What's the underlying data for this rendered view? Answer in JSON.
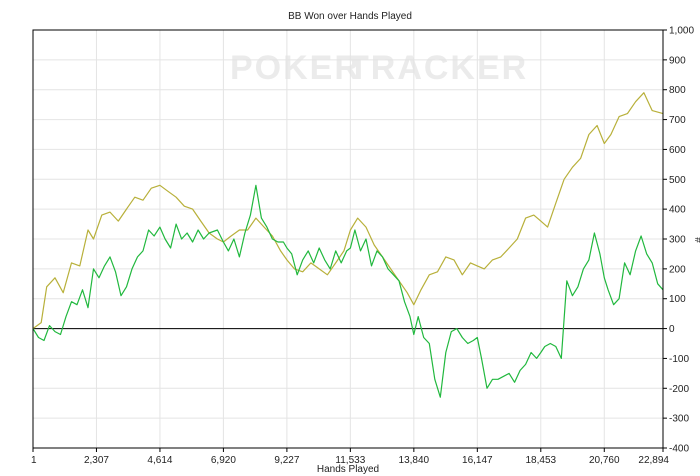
{
  "chart_data": {
    "type": "line",
    "title": "BB Won over Hands Played",
    "xlabel": "Hands Played",
    "ylabel": "",
    "y_axis_unit_glyph": "#",
    "watermark": {
      "left": "POKER",
      "right": "TRACKER"
    },
    "xlim": [
      1,
      22894
    ],
    "ylim": [
      -400,
      1000
    ],
    "grid": true,
    "zero_line": true,
    "x_ticks": [
      1,
      2307,
      4614,
      6920,
      9227,
      11533,
      13840,
      16147,
      18453,
      20760,
      22894
    ],
    "x_tick_labels": [
      "1",
      "2,307",
      "4,614",
      "6,920",
      "9,227",
      "11,533",
      "13,840",
      "16,147",
      "18,453",
      "20,760",
      "22,894"
    ],
    "y_ticks": [
      -400,
      -300,
      -200,
      -100,
      0,
      100,
      200,
      300,
      400,
      500,
      600,
      700,
      800,
      900,
      1000
    ],
    "y_tick_labels": [
      "-400",
      "-300",
      "-200",
      "-100",
      "0",
      "100",
      "200",
      "300",
      "400",
      "500",
      "600",
      "700",
      "800",
      "900",
      "1,000"
    ],
    "series": [
      {
        "color": "#b8b03a",
        "points": [
          [
            1,
            0
          ],
          [
            300,
            20
          ],
          [
            500,
            140
          ],
          [
            800,
            170
          ],
          [
            1100,
            120
          ],
          [
            1400,
            220
          ],
          [
            1700,
            210
          ],
          [
            2000,
            330
          ],
          [
            2200,
            300
          ],
          [
            2500,
            380
          ],
          [
            2800,
            390
          ],
          [
            3100,
            360
          ],
          [
            3400,
            400
          ],
          [
            3700,
            440
          ],
          [
            4000,
            430
          ],
          [
            4300,
            470
          ],
          [
            4614,
            480
          ],
          [
            4900,
            460
          ],
          [
            5200,
            440
          ],
          [
            5500,
            410
          ],
          [
            5800,
            400
          ],
          [
            6100,
            360
          ],
          [
            6400,
            320
          ],
          [
            6700,
            300
          ],
          [
            6920,
            290
          ],
          [
            7200,
            310
          ],
          [
            7500,
            330
          ],
          [
            7800,
            330
          ],
          [
            8100,
            370
          ],
          [
            8400,
            340
          ],
          [
            8700,
            310
          ],
          [
            9000,
            260
          ],
          [
            9227,
            230
          ],
          [
            9500,
            200
          ],
          [
            9800,
            190
          ],
          [
            10100,
            220
          ],
          [
            10400,
            200
          ],
          [
            10700,
            180
          ],
          [
            11000,
            220
          ],
          [
            11300,
            260
          ],
          [
            11533,
            330
          ],
          [
            11800,
            370
          ],
          [
            12100,
            340
          ],
          [
            12400,
            280
          ],
          [
            12700,
            240
          ],
          [
            13000,
            200
          ],
          [
            13300,
            160
          ],
          [
            13600,
            120
          ],
          [
            13840,
            80
          ],
          [
            14100,
            130
          ],
          [
            14400,
            180
          ],
          [
            14700,
            190
          ],
          [
            15000,
            240
          ],
          [
            15300,
            230
          ],
          [
            15600,
            180
          ],
          [
            15900,
            220
          ],
          [
            16147,
            210
          ],
          [
            16400,
            200
          ],
          [
            16700,
            230
          ],
          [
            17000,
            240
          ],
          [
            17300,
            270
          ],
          [
            17600,
            300
          ],
          [
            17900,
            370
          ],
          [
            18200,
            380
          ],
          [
            18453,
            360
          ],
          [
            18700,
            340
          ],
          [
            19000,
            420
          ],
          [
            19300,
            500
          ],
          [
            19600,
            540
          ],
          [
            19900,
            570
          ],
          [
            20200,
            650
          ],
          [
            20500,
            680
          ],
          [
            20760,
            620
          ],
          [
            21000,
            650
          ],
          [
            21300,
            710
          ],
          [
            21600,
            720
          ],
          [
            21900,
            760
          ],
          [
            22200,
            790
          ],
          [
            22500,
            730
          ],
          [
            22894,
            720
          ]
        ]
      },
      {
        "color": "#21b83e",
        "points": [
          [
            1,
            0
          ],
          [
            200,
            -30
          ],
          [
            400,
            -40
          ],
          [
            600,
            10
          ],
          [
            800,
            -10
          ],
          [
            1000,
            -20
          ],
          [
            1200,
            40
          ],
          [
            1400,
            90
          ],
          [
            1600,
            80
          ],
          [
            1800,
            130
          ],
          [
            2000,
            70
          ],
          [
            2200,
            200
          ],
          [
            2400,
            170
          ],
          [
            2600,
            210
          ],
          [
            2800,
            240
          ],
          [
            3000,
            190
          ],
          [
            3200,
            110
          ],
          [
            3400,
            140
          ],
          [
            3600,
            200
          ],
          [
            3800,
            240
          ],
          [
            4000,
            260
          ],
          [
            4200,
            330
          ],
          [
            4400,
            310
          ],
          [
            4614,
            340
          ],
          [
            4800,
            300
          ],
          [
            5000,
            270
          ],
          [
            5200,
            350
          ],
          [
            5400,
            300
          ],
          [
            5600,
            320
          ],
          [
            5800,
            290
          ],
          [
            6000,
            330
          ],
          [
            6200,
            300
          ],
          [
            6400,
            320
          ],
          [
            6700,
            330
          ],
          [
            6920,
            290
          ],
          [
            7100,
            260
          ],
          [
            7300,
            300
          ],
          [
            7500,
            240
          ],
          [
            7700,
            320
          ],
          [
            7900,
            380
          ],
          [
            8100,
            480
          ],
          [
            8300,
            370
          ],
          [
            8500,
            340
          ],
          [
            8700,
            300
          ],
          [
            8900,
            290
          ],
          [
            9100,
            290
          ],
          [
            9227,
            270
          ],
          [
            9400,
            250
          ],
          [
            9600,
            180
          ],
          [
            9800,
            230
          ],
          [
            10000,
            260
          ],
          [
            10200,
            220
          ],
          [
            10400,
            270
          ],
          [
            10600,
            230
          ],
          [
            10800,
            200
          ],
          [
            11000,
            260
          ],
          [
            11200,
            220
          ],
          [
            11400,
            260
          ],
          [
            11533,
            270
          ],
          [
            11700,
            330
          ],
          [
            11900,
            260
          ],
          [
            12100,
            300
          ],
          [
            12300,
            210
          ],
          [
            12500,
            260
          ],
          [
            12700,
            240
          ],
          [
            12900,
            200
          ],
          [
            13100,
            180
          ],
          [
            13300,
            160
          ],
          [
            13500,
            90
          ],
          [
            13700,
            40
          ],
          [
            13840,
            -20
          ],
          [
            14000,
            40
          ],
          [
            14200,
            -30
          ],
          [
            14400,
            -50
          ],
          [
            14600,
            -170
          ],
          [
            14800,
            -230
          ],
          [
            15000,
            -80
          ],
          [
            15200,
            -10
          ],
          [
            15400,
            0
          ],
          [
            15600,
            -30
          ],
          [
            15800,
            -50
          ],
          [
            16000,
            -40
          ],
          [
            16147,
            -30
          ],
          [
            16300,
            -100
          ],
          [
            16500,
            -200
          ],
          [
            16700,
            -170
          ],
          [
            16900,
            -170
          ],
          [
            17100,
            -160
          ],
          [
            17300,
            -150
          ],
          [
            17500,
            -180
          ],
          [
            17700,
            -140
          ],
          [
            17900,
            -120
          ],
          [
            18100,
            -80
          ],
          [
            18300,
            -100
          ],
          [
            18453,
            -80
          ],
          [
            18600,
            -60
          ],
          [
            18800,
            -50
          ],
          [
            19000,
            -60
          ],
          [
            19200,
            -100
          ],
          [
            19400,
            160
          ],
          [
            19600,
            110
          ],
          [
            19800,
            140
          ],
          [
            20000,
            200
          ],
          [
            20200,
            230
          ],
          [
            20400,
            320
          ],
          [
            20600,
            250
          ],
          [
            20760,
            170
          ],
          [
            20900,
            130
          ],
          [
            21100,
            80
          ],
          [
            21300,
            100
          ],
          [
            21500,
            220
          ],
          [
            21700,
            180
          ],
          [
            21900,
            260
          ],
          [
            22100,
            310
          ],
          [
            22300,
            250
          ],
          [
            22500,
            220
          ],
          [
            22700,
            150
          ],
          [
            22894,
            130
          ]
        ]
      }
    ]
  }
}
